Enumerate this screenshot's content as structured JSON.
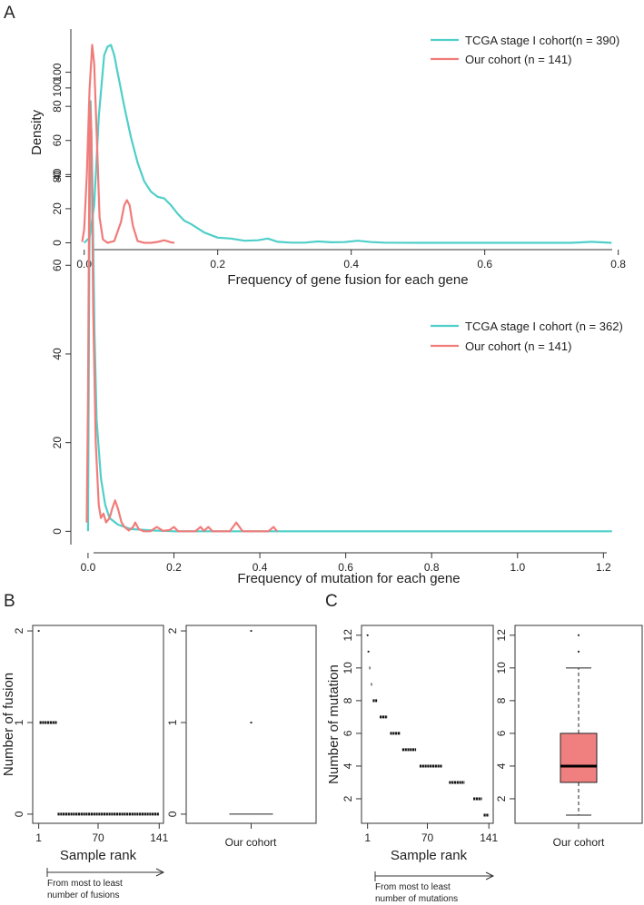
{
  "panel_labels": {
    "a": "A",
    "b": "B",
    "c": "C"
  },
  "colors": {
    "tcga": "#4FCFC9",
    "ours": "#F07C7A",
    "box_fill": "#F08080",
    "axis": "#333333"
  },
  "chart_data": [
    {
      "id": "fusion-density",
      "type": "line",
      "title": "",
      "xlabel": "Frequency of gene fusion for each gene",
      "ylabel": "Density",
      "xlim": [
        -0.02,
        0.81
      ],
      "ylim": [
        -4,
        120
      ],
      "xticks": [
        0.0,
        0.2,
        0.4,
        0.6,
        0.8
      ],
      "xtick_labels": [
        "0.0",
        "0.2",
        "0.4",
        "0.6",
        "0.8"
      ],
      "yticks": [
        0,
        20,
        40,
        60,
        80,
        100
      ],
      "ytick_labels": [
        "0",
        "20",
        "40",
        "60",
        "80",
        "100"
      ],
      "legend_position": "top-right",
      "series": [
        {
          "name": "TCGA stage I cohort(n = 390)",
          "color_key": "tcga",
          "x": [
            0.0,
            0.008,
            0.015,
            0.022,
            0.03,
            0.035,
            0.04,
            0.045,
            0.05,
            0.06,
            0.07,
            0.08,
            0.09,
            0.1,
            0.11,
            0.12,
            0.13,
            0.14,
            0.15,
            0.16,
            0.18,
            0.2,
            0.22,
            0.24,
            0.26,
            0.275,
            0.29,
            0.31,
            0.33,
            0.35,
            0.37,
            0.39,
            0.41,
            0.43,
            0.45,
            0.5,
            0.55,
            0.6,
            0.65,
            0.7,
            0.73,
            0.76,
            0.79
          ],
          "y": [
            0,
            3,
            22,
            75,
            110,
            115,
            116,
            110,
            100,
            80,
            62,
            47,
            36,
            30,
            27,
            26,
            22,
            17,
            13,
            11,
            6,
            3,
            2.5,
            1.2,
            1.5,
            2.5,
            0.6,
            0.1,
            0.1,
            0.8,
            0.3,
            0.4,
            1.2,
            0.4,
            0.1,
            0,
            0,
            0,
            0,
            0,
            0,
            0.6,
            0
          ]
        },
        {
          "name": "Our cohort (n = 141)",
          "color_key": "ours",
          "x": [
            -0.003,
            0.0,
            0.004,
            0.008,
            0.012,
            0.015,
            0.019,
            0.023,
            0.028,
            0.035,
            0.045,
            0.055,
            0.06,
            0.064,
            0.068,
            0.073,
            0.08,
            0.09,
            0.1,
            0.11,
            0.12,
            0.13,
            0.135
          ],
          "y": [
            0.5,
            8,
            40,
            90,
            116,
            105,
            60,
            15,
            2,
            0,
            1,
            12,
            22,
            25,
            22,
            10,
            1,
            0,
            0,
            0.5,
            1.5,
            0.3,
            0
          ]
        }
      ]
    },
    {
      "id": "mutation-density",
      "type": "line",
      "title": "",
      "xlabel": "Frequency of mutation for each gene",
      "ylabel": "",
      "xlim": [
        -0.04,
        1.25
      ],
      "ylim": [
        -3,
        101
      ],
      "xticks": [
        0.0,
        0.2,
        0.4,
        0.6,
        0.8,
        1.0,
        1.2
      ],
      "xtick_labels": [
        "0.0",
        "0.2",
        "0.4",
        "0.6",
        "0.8",
        "1.0",
        "1.2"
      ],
      "yticks": [
        0,
        20,
        40,
        60,
        80,
        100
      ],
      "ytick_labels": [
        "0",
        "20",
        "40",
        "60",
        "80",
        "100"
      ],
      "legend_position": "top-right",
      "series": [
        {
          "name": "TCGA stage I cohort (n = 362)",
          "color_key": "tcga",
          "x": [
            0.0,
            0.003,
            0.006,
            0.01,
            0.015,
            0.02,
            0.03,
            0.04,
            0.05,
            0.07,
            0.1,
            0.15,
            0.2,
            0.4,
            0.6,
            0.8,
            1.0,
            1.22
          ],
          "y": [
            0,
            60,
            97,
            80,
            45,
            25,
            12,
            6,
            3,
            1.5,
            0.5,
            0.2,
            0,
            0,
            0,
            0,
            0,
            0
          ]
        },
        {
          "name": "Our cohort (n = 141)",
          "color_key": "ours",
          "x": [
            -0.003,
            0.0,
            0.004,
            0.008,
            0.012,
            0.018,
            0.025,
            0.03,
            0.036,
            0.042,
            0.05,
            0.056,
            0.063,
            0.07,
            0.078,
            0.085,
            0.095,
            0.105,
            0.11,
            0.118,
            0.13,
            0.145,
            0.16,
            0.175,
            0.19,
            0.2,
            0.21,
            0.25,
            0.262,
            0.27,
            0.28,
            0.29,
            0.33,
            0.345,
            0.36,
            0.42,
            0.432,
            0.44
          ],
          "y": [
            2,
            30,
            97,
            90,
            50,
            20,
            6,
            3,
            4,
            2,
            3,
            5,
            7,
            5,
            2,
            1,
            0.2,
            1,
            2,
            0.5,
            0,
            0,
            1,
            0.1,
            0.3,
            1,
            0,
            0,
            1,
            0.1,
            1,
            0,
            0,
            2,
            0,
            0,
            1,
            0
          ]
        }
      ]
    },
    {
      "id": "fusion-rank",
      "type": "scatter",
      "xlabel": "Sample rank",
      "ylabel": "Number of fusion",
      "xticks": [
        1,
        70,
        141
      ],
      "yticks": [
        0,
        1,
        2
      ],
      "xlim": [
        -6,
        146
      ],
      "ylim": [
        -0.1,
        2.06
      ],
      "groups": [
        {
          "value": 2,
          "rank_from": 1,
          "rank_to": 1
        },
        {
          "value": 1,
          "rank_from": 2,
          "rank_to": 22
        },
        {
          "value": 0,
          "rank_from": 23,
          "rank_to": 141
        }
      ],
      "arrow_note": [
        "From most to least",
        "number of fusions"
      ]
    },
    {
      "id": "fusion-box",
      "type": "box",
      "xlabel": "Our cohort",
      "ylabel": "",
      "yticks": [
        0,
        1,
        2
      ],
      "ylim": [
        -0.1,
        2.06
      ],
      "stats": {
        "min": 0,
        "q1": 0,
        "median": 0,
        "q3": 0,
        "max": 0,
        "outliers": [
          1,
          2
        ]
      }
    },
    {
      "id": "mutation-rank",
      "type": "scatter",
      "xlabel": "Sample rank",
      "ylabel": "Number of mutation",
      "xticks": [
        1,
        70,
        141
      ],
      "yticks": [
        2,
        4,
        6,
        8,
        10,
        12
      ],
      "xlim": [
        -6,
        146
      ],
      "ylim": [
        0.5,
        12.6
      ],
      "groups": [
        {
          "value": 12,
          "rank_from": 1,
          "rank_to": 1
        },
        {
          "value": 11,
          "rank_from": 2,
          "rank_to": 2
        },
        {
          "value": 10,
          "rank_from": 3,
          "rank_to": 4
        },
        {
          "value": 9,
          "rank_from": 5,
          "rank_to": 6
        },
        {
          "value": 8,
          "rank_from": 7,
          "rank_to": 12
        },
        {
          "value": 7,
          "rank_from": 15,
          "rank_to": 24
        },
        {
          "value": 6,
          "rank_from": 27,
          "rank_to": 39
        },
        {
          "value": 5,
          "rank_from": 41,
          "rank_to": 57
        },
        {
          "value": 4,
          "rank_from": 61,
          "rank_to": 87
        },
        {
          "value": 3,
          "rank_from": 95,
          "rank_to": 113
        },
        {
          "value": 2,
          "rank_from": 123,
          "rank_to": 133
        },
        {
          "value": 1,
          "rank_from": 135,
          "rank_to": 141
        }
      ],
      "arrow_note": [
        "From most to least",
        "number of mutations"
      ]
    },
    {
      "id": "mutation-box",
      "type": "box",
      "xlabel": "Our cohort",
      "ylabel": "",
      "yticks": [
        2,
        4,
        6,
        8,
        10,
        12
      ],
      "ylim": [
        0.5,
        12.6
      ],
      "stats": {
        "min": 1,
        "q1": 3,
        "median": 4,
        "q3": 6,
        "max": 10,
        "outliers": [
          11,
          12
        ]
      }
    }
  ]
}
